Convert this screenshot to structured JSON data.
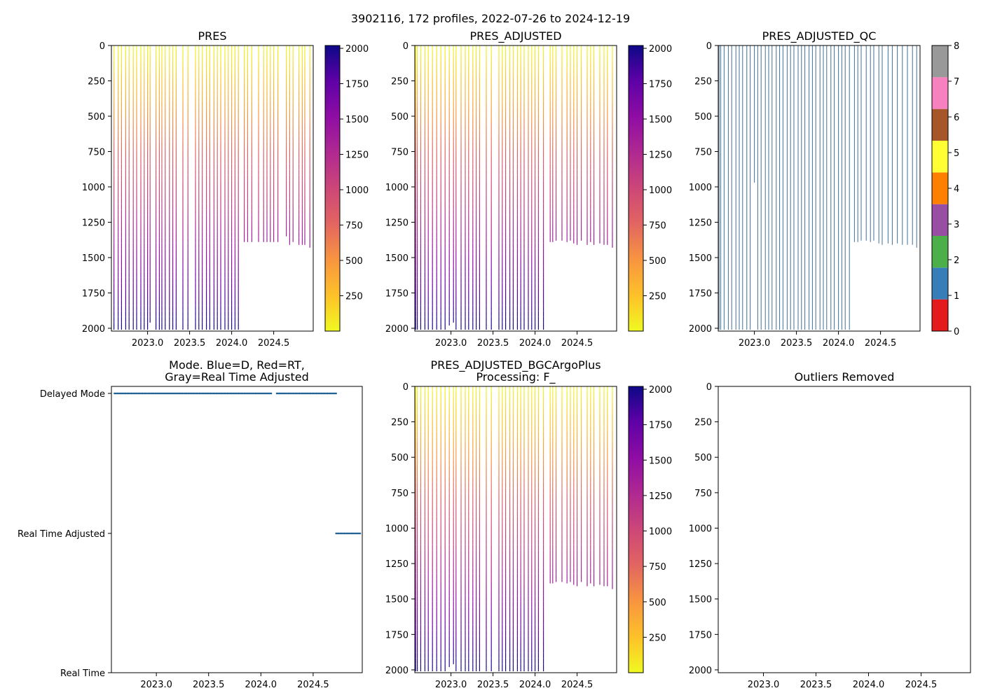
{
  "suptitle": "3902116, 172 profiles, 2022-07-26 to 2024-12-19",
  "x_ticks": [
    "2023.0",
    "2023.5",
    "2024.0",
    "2024.5"
  ],
  "x_tick_values": [
    2023.0,
    2023.5,
    2024.0,
    2024.5
  ],
  "chart_data": [
    {
      "id": "pres",
      "type": "line",
      "title": "PRES",
      "xlim": [
        2022.57,
        2024.97
      ],
      "ylim": [
        2020,
        0
      ],
      "y_ticks": [
        "0",
        "250",
        "500",
        "750",
        "1000",
        "1250",
        "1500",
        "1750",
        "2000"
      ],
      "y_tick_values": [
        0,
        250,
        500,
        750,
        1000,
        1250,
        1500,
        1750,
        2000
      ],
      "colorbar": {
        "type": "plasma_r",
        "range": [
          0,
          2020
        ],
        "ticks": [
          "250",
          "500",
          "750",
          "1000",
          "1250",
          "1500",
          "1750",
          "2000"
        ],
        "tick_values": [
          250,
          500,
          750,
          1000,
          1250,
          1500,
          1750,
          2000
        ]
      },
      "profiles_x": [
        2022.6,
        2022.65,
        2022.69,
        2022.74,
        2022.78,
        2022.83,
        2022.87,
        2022.92,
        2022.96,
        2023.0,
        2023.03,
        2023.1,
        2023.14,
        2023.17,
        2023.21,
        2023.26,
        2023.3,
        2023.34,
        2023.42,
        2023.48,
        2023.57,
        2023.61,
        2023.65,
        2023.7,
        2023.74,
        2023.79,
        2023.83,
        2023.87,
        2023.92,
        2023.96,
        2024.0,
        2024.04,
        2024.08,
        2024.15,
        2024.19,
        2024.24,
        2024.32,
        2024.38,
        2024.42,
        2024.46,
        2024.5,
        2024.55,
        2024.65,
        2024.69,
        2024.73,
        2024.8,
        2024.84,
        2024.87,
        2024.93
      ],
      "profiles_max": [
        2010,
        2010,
        2010,
        2010,
        2010,
        2010,
        2010,
        2010,
        2010,
        2010,
        1960,
        2010,
        2010,
        2010,
        2010,
        2010,
        2010,
        2010,
        2010,
        2010,
        2010,
        2010,
        2010,
        2010,
        2010,
        2010,
        2010,
        2010,
        2010,
        2010,
        2010,
        2010,
        2010,
        1390,
        1390,
        1390,
        1390,
        1390,
        1390,
        1390,
        1390,
        1390,
        1350,
        1410,
        1390,
        1410,
        1410,
        1410,
        1430
      ]
    },
    {
      "id": "pres_adj",
      "type": "line",
      "title": "PRES_ADJUSTED",
      "xlim": [
        2022.57,
        2024.97
      ],
      "ylim": [
        2020,
        0
      ],
      "y_ticks": [
        "0",
        "250",
        "500",
        "750",
        "1000",
        "1250",
        "1500",
        "1750",
        "2000"
      ],
      "y_tick_values": [
        0,
        250,
        500,
        750,
        1000,
        1250,
        1500,
        1750,
        2000
      ],
      "colorbar": {
        "type": "plasma_r",
        "range": [
          0,
          2020
        ],
        "ticks": [
          "250",
          "500",
          "750",
          "1000",
          "1250",
          "1500",
          "1750",
          "2000"
        ],
        "tick_values": [
          250,
          500,
          750,
          1000,
          1250,
          1500,
          1750,
          2000
        ]
      },
      "profiles_x": [
        2022.58,
        2022.6,
        2022.64,
        2022.69,
        2022.73,
        2022.78,
        2022.83,
        2022.88,
        2022.93,
        2022.98,
        2023.03,
        2023.06,
        2023.12,
        2023.17,
        2023.21,
        2023.26,
        2023.3,
        2023.34,
        2023.42,
        2023.48,
        2023.57,
        2023.61,
        2023.65,
        2023.7,
        2023.74,
        2023.79,
        2023.83,
        2023.87,
        2023.92,
        2023.96,
        2024.0,
        2024.04,
        2024.1,
        2024.18,
        2024.21,
        2024.25,
        2024.32,
        2024.38,
        2024.42,
        2024.46,
        2024.5,
        2024.55,
        2024.62,
        2024.66,
        2024.7,
        2024.77,
        2024.82,
        2024.86,
        2024.92
      ],
      "profiles_max": [
        2010,
        2010,
        2010,
        2010,
        2010,
        2010,
        2010,
        2010,
        2010,
        1980,
        1960,
        2010,
        2010,
        2010,
        2010,
        2010,
        2010,
        2010,
        2010,
        2010,
        2010,
        2010,
        2010,
        2010,
        2010,
        2010,
        2010,
        2010,
        2010,
        2010,
        2010,
        2010,
        2010,
        1390,
        1390,
        1380,
        1380,
        1390,
        1380,
        1400,
        1410,
        1380,
        1410,
        1390,
        1410,
        1400,
        1410,
        1410,
        1430
      ]
    },
    {
      "id": "pres_adj_qc",
      "type": "line",
      "title": "PRES_ADJUSTED_QC",
      "xlim": [
        2022.57,
        2024.97
      ],
      "ylim": [
        2020,
        0
      ],
      "y_ticks": [
        "0",
        "250",
        "500",
        "750",
        "1000",
        "1250",
        "1500",
        "1750",
        "2000"
      ],
      "y_tick_values": [
        0,
        250,
        500,
        750,
        1000,
        1250,
        1500,
        1750,
        2000
      ],
      "colorbar": {
        "type": "discrete",
        "range": [
          0,
          8
        ],
        "ticks": [
          "0",
          "1",
          "2",
          "3",
          "4",
          "5",
          "6",
          "7",
          "8"
        ],
        "tick_values": [
          0,
          1,
          2,
          3,
          4,
          5,
          6,
          7,
          8
        ],
        "colors": [
          "#e41a1c",
          "#377eb8",
          "#4daf4a",
          "#984ea3",
          "#ff7f00",
          "#ffff33",
          "#a65628",
          "#f781bf",
          "#999999"
        ]
      },
      "line_color": "#3e6f97",
      "profiles_x": [
        2022.58,
        2022.6,
        2022.64,
        2022.69,
        2022.73,
        2022.78,
        2022.82,
        2022.86,
        2022.91,
        2022.95,
        2023.0,
        2023.04,
        2023.08,
        2023.13,
        2023.17,
        2023.21,
        2023.26,
        2023.3,
        2023.34,
        2023.39,
        2023.43,
        2023.47,
        2023.52,
        2023.56,
        2023.6,
        2023.65,
        2023.69,
        2023.73,
        2023.78,
        2023.82,
        2023.86,
        2023.91,
        2023.95,
        2024.0,
        2024.04,
        2024.08,
        2024.13,
        2024.19,
        2024.23,
        2024.27,
        2024.33,
        2024.38,
        2024.42,
        2024.48,
        2024.52,
        2024.59,
        2024.64,
        2024.7,
        2024.76,
        2024.82,
        2024.88,
        2024.93
      ],
      "profiles_max": [
        2010,
        2010,
        2010,
        2010,
        2010,
        2010,
        2010,
        2010,
        2010,
        2010,
        970,
        2010,
        2010,
        2010,
        2010,
        2010,
        2010,
        2010,
        2010,
        2010,
        2010,
        2010,
        2010,
        2010,
        2010,
        2010,
        2010,
        2010,
        2010,
        2010,
        2010,
        2010,
        2010,
        2010,
        2010,
        2010,
        2010,
        1390,
        1390,
        1380,
        1380,
        1390,
        1380,
        1400,
        1410,
        1400,
        1410,
        1400,
        1410,
        1410,
        1410,
        1430
      ]
    },
    {
      "id": "mode",
      "type": "scatter",
      "title": "Mode. Blue=D, Red=RT,",
      "title_line2": "Gray=Real Time Adjusted",
      "xlim": [
        2022.57,
        2024.97
      ],
      "y_categories": [
        "Delayed Mode",
        "Real Time Adjusted",
        "Real Time"
      ],
      "y_category_values": [
        2,
        1,
        0
      ],
      "point_color": "#1f6396",
      "series": [
        {
          "name": "Delayed Mode",
          "y": 2,
          "x_from": 2022.6,
          "x_to": 2024.72,
          "gaps": [
            [
              2024.1,
              2024.15
            ]
          ]
        },
        {
          "name": "Real Time Adjusted",
          "y": 1,
          "x_from": 2024.72,
          "x_to": 2024.96,
          "gaps": []
        }
      ]
    },
    {
      "id": "bgc",
      "type": "line",
      "title": "PRES_ADJUSTED_BGCArgoPlus",
      "title_line2": "Processing: F_",
      "xlim": [
        2022.57,
        2024.97
      ],
      "ylim": [
        2020,
        0
      ],
      "y_ticks": [
        "0",
        "250",
        "500",
        "750",
        "1000",
        "1250",
        "1500",
        "1750",
        "2000"
      ],
      "y_tick_values": [
        0,
        250,
        500,
        750,
        1000,
        1250,
        1500,
        1750,
        2000
      ],
      "colorbar": {
        "type": "plasma_r",
        "range": [
          0,
          2020
        ],
        "ticks": [
          "250",
          "500",
          "750",
          "1000",
          "1250",
          "1500",
          "1750",
          "2000"
        ],
        "tick_values": [
          250,
          500,
          750,
          1000,
          1250,
          1500,
          1750,
          2000
        ]
      },
      "profiles_x": [
        2022.58,
        2022.6,
        2022.64,
        2022.69,
        2022.73,
        2022.78,
        2022.83,
        2022.88,
        2022.93,
        2022.98,
        2023.03,
        2023.06,
        2023.12,
        2023.17,
        2023.21,
        2023.26,
        2023.3,
        2023.34,
        2023.42,
        2023.48,
        2023.57,
        2023.61,
        2023.65,
        2023.7,
        2023.74,
        2023.79,
        2023.83,
        2023.87,
        2023.92,
        2023.96,
        2024.0,
        2024.04,
        2024.1,
        2024.18,
        2024.21,
        2024.25,
        2024.32,
        2024.38,
        2024.42,
        2024.46,
        2024.5,
        2024.55,
        2024.62,
        2024.66,
        2024.7,
        2024.77,
        2024.82,
        2024.86,
        2024.92
      ],
      "profiles_max": [
        2010,
        2010,
        2010,
        2010,
        2010,
        2010,
        2010,
        2010,
        2010,
        1980,
        1960,
        2010,
        2010,
        2010,
        2010,
        2010,
        2010,
        2010,
        2010,
        2010,
        2010,
        2010,
        2010,
        2010,
        2010,
        2010,
        2010,
        2010,
        2010,
        2010,
        2010,
        2010,
        2010,
        1390,
        1390,
        1380,
        1380,
        1390,
        1380,
        1400,
        1410,
        1380,
        1410,
        1390,
        1410,
        1400,
        1410,
        1410,
        1430
      ]
    },
    {
      "id": "outliers",
      "type": "scatter",
      "title": "Outliers Removed",
      "xlim": [
        2022.57,
        2024.97
      ],
      "ylim": [
        2020,
        0
      ],
      "y_ticks": [
        "0",
        "250",
        "500",
        "750",
        "1000",
        "1250",
        "1500",
        "1750",
        "2000"
      ],
      "y_tick_values": [
        0,
        250,
        500,
        750,
        1000,
        1250,
        1500,
        1750,
        2000
      ],
      "points": []
    }
  ]
}
